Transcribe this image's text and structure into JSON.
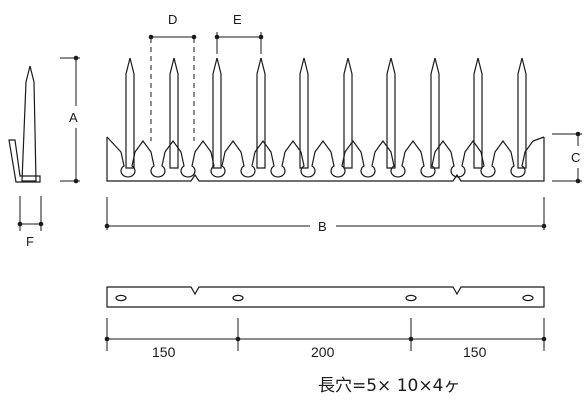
{
  "labels": {
    "a": "A",
    "b": "B",
    "c": "C",
    "d": "D",
    "e": "E",
    "f": "F"
  },
  "dimensions": {
    "left": "150",
    "middle": "200",
    "right": "150"
  },
  "note": "長穴=5× 10×4ヶ"
}
